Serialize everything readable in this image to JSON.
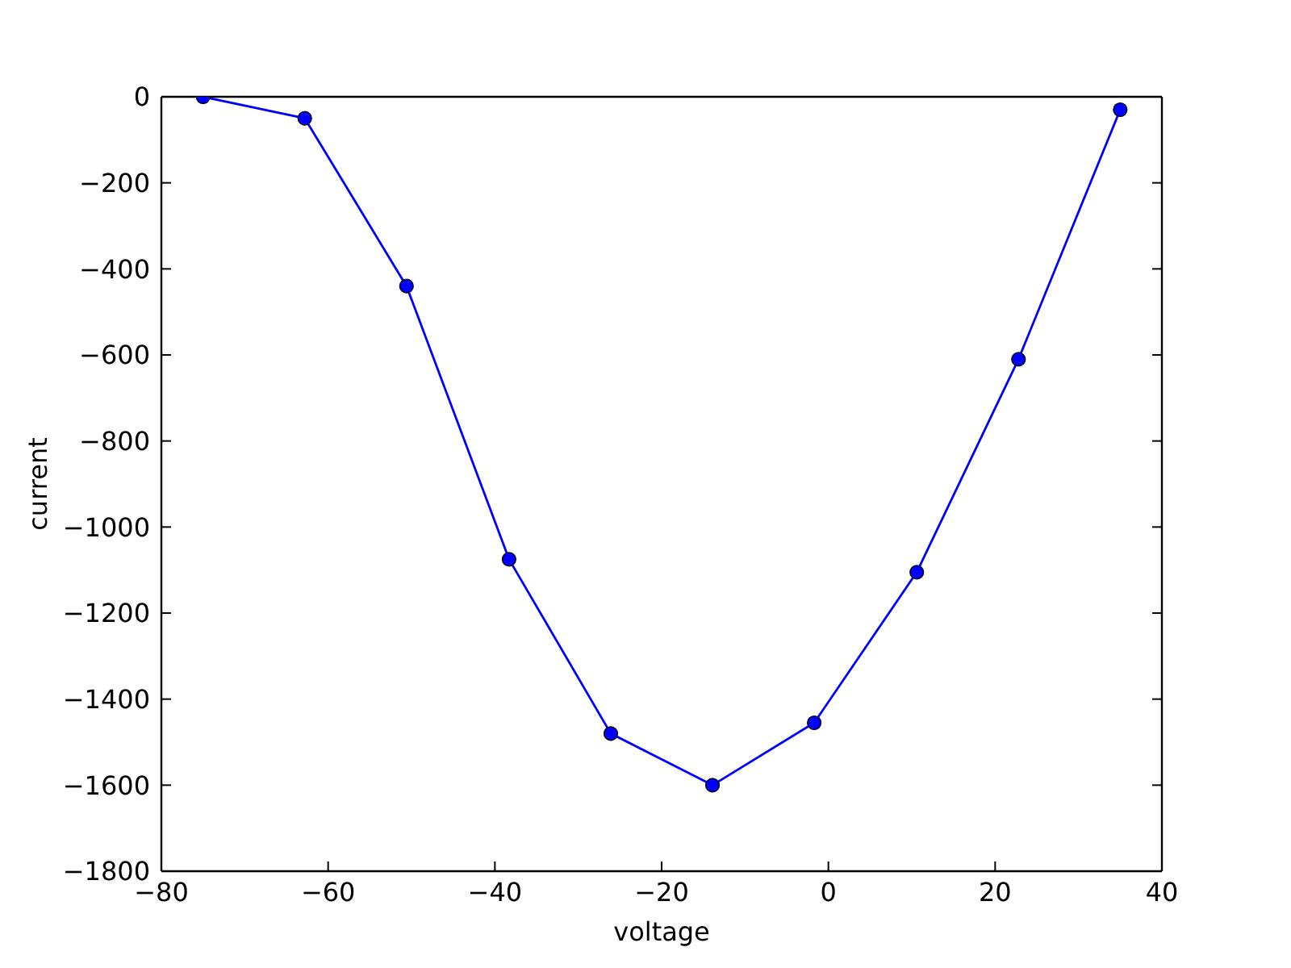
{
  "chart_data": {
    "type": "line",
    "xlabel": "voltage",
    "ylabel": "current",
    "x": [
      -75,
      -62.8,
      -50.6,
      -38.3,
      -26.1,
      -13.9,
      -1.7,
      10.6,
      22.8,
      35
    ],
    "series": [
      {
        "color": "#0000ff",
        "values": [
          0,
          -50,
          -440,
          -1075,
          -1480,
          -1600,
          -1455,
          -1105,
          -610,
          -30
        ]
      }
    ],
    "xlim": [
      -80,
      40
    ],
    "ylim": [
      -1800,
      0
    ],
    "xticks": [
      -80,
      -60,
      -40,
      -20,
      0,
      20,
      40
    ],
    "yticks": [
      -1800,
      -1600,
      -1400,
      -1200,
      -1000,
      -800,
      -600,
      -400,
      -200,
      0
    ],
    "marker": "circle",
    "line_style": "solid"
  }
}
